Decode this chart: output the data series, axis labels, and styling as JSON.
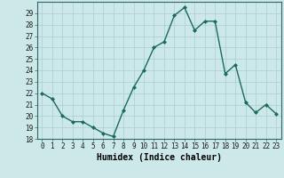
{
  "x": [
    0,
    1,
    2,
    3,
    4,
    5,
    6,
    7,
    8,
    9,
    10,
    11,
    12,
    13,
    14,
    15,
    16,
    17,
    18,
    19,
    20,
    21,
    22,
    23
  ],
  "y": [
    22,
    21.5,
    20,
    19.5,
    19.5,
    19,
    18.5,
    18.2,
    20.5,
    22.5,
    24,
    26,
    26.5,
    28.8,
    29.5,
    27.5,
    28.3,
    28.3,
    23.7,
    24.5,
    21.2,
    20.3,
    21,
    20.2
  ],
  "line_color": "#1a6b5a",
  "marker": "D",
  "marker_size": 2,
  "bg_color": "#cce8e8",
  "grid_color": "#aacece",
  "xlabel": "Humidex (Indice chaleur)",
  "ylim": [
    18,
    30
  ],
  "xlim": [
    -0.5,
    23.5
  ],
  "yticks": [
    18,
    19,
    20,
    21,
    22,
    23,
    24,
    25,
    26,
    27,
    28,
    29
  ],
  "xticks": [
    0,
    1,
    2,
    3,
    4,
    5,
    6,
    7,
    8,
    9,
    10,
    11,
    12,
    13,
    14,
    15,
    16,
    17,
    18,
    19,
    20,
    21,
    22,
    23
  ],
  "tick_fontsize": 5.5,
  "xlabel_fontsize": 7,
  "line_width": 1.0
}
